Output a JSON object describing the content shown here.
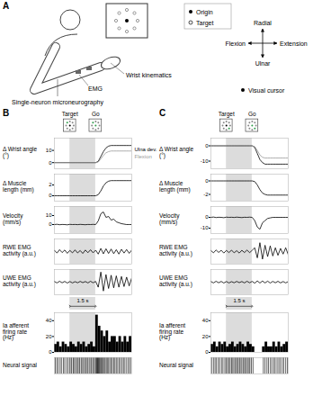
{
  "figure": {
    "diagram": {
      "panel": "A",
      "labels": {
        "emg": "EMG",
        "recording": "Single-neuron microneurography",
        "kinematics": "Wrist kinematics"
      },
      "legend": {
        "origin": "Origin",
        "target": "Target",
        "cursor": "Visual cursor"
      },
      "directions": {
        "up": "Radial",
        "down": "Ulnar",
        "left": "Flexion",
        "right": "Extension"
      }
    },
    "panels": [
      "B",
      "C"
    ],
    "events": [
      {
        "label": "Target",
        "x": 0.9
      },
      {
        "label": "Go",
        "x": 2.4
      }
    ],
    "scale_bar": {
      "value": 1.5,
      "label": "1.5 s"
    }
  },
  "chart_data": [
    {
      "panel": "B",
      "type": "line",
      "y_label": "Δ Wrist angle (°)",
      "x": [
        0,
        0.15,
        0.3,
        0.45,
        0.6,
        0.75,
        0.9,
        1.05,
        1.2,
        1.35,
        1.5,
        1.65,
        1.8,
        1.95,
        2.1,
        2.25,
        2.4,
        2.55,
        2.7,
        2.85,
        3,
        3.15,
        3.3,
        3.45,
        3.6,
        3.75,
        3.9,
        4.05,
        4.2,
        4.35,
        4.5
      ],
      "series": [
        {
          "name": "Ulna dev.",
          "color": "#000000",
          "values": [
            0,
            0,
            0,
            0,
            0,
            0,
            0,
            0,
            0,
            0,
            0,
            0,
            0,
            0,
            0,
            0,
            0,
            1,
            5,
            9,
            12,
            13.5,
            14,
            14,
            14,
            14,
            14,
            14,
            14,
            14,
            14
          ]
        },
        {
          "name": "Flexion",
          "color": "#999999",
          "values": [
            0,
            0,
            0,
            0,
            0,
            0,
            0,
            0,
            0,
            0,
            0,
            0,
            0,
            0,
            0,
            0,
            0,
            0.5,
            3,
            6,
            8,
            9,
            9.5,
            9.5,
            9.5,
            9.5,
            9.5,
            9.5,
            9.5,
            9.5,
            9.5
          ]
        }
      ],
      "xlim": [
        0,
        4.5
      ],
      "ylim": [
        -5,
        20
      ],
      "yticks": [
        0,
        10
      ],
      "tick_labels": "y",
      "legend": "right"
    },
    {
      "panel": "B",
      "type": "line",
      "y_label": "Δ Muscle length (mm)",
      "x": [
        0,
        0.15,
        0.3,
        0.45,
        0.6,
        0.75,
        0.9,
        1.05,
        1.2,
        1.35,
        1.5,
        1.65,
        1.8,
        1.95,
        2.1,
        2.25,
        2.4,
        2.55,
        2.7,
        2.85,
        3,
        3.15,
        3.3,
        3.45,
        3.6,
        3.75,
        3.9,
        4.05,
        4.2,
        4.35,
        4.5
      ],
      "values": [
        0,
        0,
        0,
        0,
        0,
        0,
        0,
        0,
        0,
        0,
        0,
        0,
        0,
        0,
        0,
        0,
        0,
        0.2,
        0.9,
        1.8,
        2.4,
        2.7,
        2.8,
        2.8,
        2.8,
        2.8,
        2.8,
        2.8,
        2.8,
        2.8,
        2.8
      ],
      "color": "#000000",
      "xlim": [
        0,
        4.5
      ],
      "ylim": [
        -1,
        4
      ],
      "yticks": [
        0,
        2
      ],
      "tick_labels": "y"
    },
    {
      "panel": "B",
      "type": "line",
      "y_label": "Velocity (mm/s)",
      "x": [
        0,
        0.15,
        0.3,
        0.45,
        0.6,
        0.75,
        0.9,
        1.05,
        1.2,
        1.35,
        1.5,
        1.65,
        1.8,
        1.95,
        2.1,
        2.25,
        2.4,
        2.55,
        2.7,
        2.85,
        3,
        3.15,
        3.3,
        3.45,
        3.6,
        3.75,
        3.9,
        4.05,
        4.2,
        4.35,
        4.5
      ],
      "values": [
        0,
        0.3,
        -0.2,
        0.1,
        0,
        -0.3,
        0.2,
        0,
        0.1,
        -0.1,
        0.2,
        0,
        -0.2,
        0.1,
        0,
        0.2,
        0,
        4,
        12,
        14,
        8,
        9,
        5,
        6,
        3,
        2,
        1,
        0.5,
        0,
        0,
        0
      ],
      "color": "#000000",
      "xlim": [
        0,
        4.5
      ],
      "ylim": [
        -10,
        20
      ],
      "yticks": [
        0,
        10
      ],
      "tick_labels": "y"
    },
    {
      "panel": "B",
      "type": "line",
      "y_label": "RWE EMG activity (a.u.)",
      "x": [
        0,
        0.15,
        0.3,
        0.45,
        0.6,
        0.75,
        0.9,
        1.05,
        1.2,
        1.35,
        1.5,
        1.65,
        1.8,
        1.95,
        2.1,
        2.25,
        2.4,
        2.55,
        2.7,
        2.85,
        3,
        3.15,
        3.3,
        3.45,
        3.6,
        3.75,
        3.9,
        4.05,
        4.2,
        4.35,
        4.5
      ],
      "values": [
        0.1,
        -0.12,
        0.15,
        -0.08,
        0.12,
        -0.14,
        0.09,
        -0.1,
        0.13,
        -0.11,
        0.08,
        -0.15,
        0.12,
        -0.09,
        0.14,
        -0.1,
        0.11,
        -0.2,
        0.25,
        -0.18,
        0.22,
        -0.15,
        0.2,
        -0.17,
        0.15,
        -0.2,
        0.18,
        -0.12,
        0.16,
        -0.14,
        0.12
      ],
      "color": "#000000",
      "xlim": [
        0,
        4.5
      ],
      "ylim": [
        -1,
        1
      ],
      "tick_labels": false
    },
    {
      "panel": "B",
      "type": "line",
      "y_label": "UWE EMG activity (a.u.)",
      "x": [
        0,
        0.15,
        0.3,
        0.45,
        0.6,
        0.75,
        0.9,
        1.05,
        1.2,
        1.35,
        1.5,
        1.65,
        1.8,
        1.95,
        2.1,
        2.25,
        2.4,
        2.55,
        2.7,
        2.85,
        3,
        3.15,
        3.3,
        3.45,
        3.6,
        3.75,
        3.9,
        4.05,
        4.2,
        4.35,
        4.5
      ],
      "values": [
        0.05,
        -0.06,
        0.07,
        -0.05,
        0.06,
        -0.07,
        0.05,
        -0.06,
        0.04,
        -0.05,
        0.06,
        -0.04,
        0.05,
        -0.06,
        0.07,
        -0.05,
        0.06,
        -0.4,
        0.8,
        -0.7,
        0.6,
        -0.5,
        0.55,
        -0.45,
        0.5,
        -0.4,
        0.45,
        -0.35,
        0.4,
        -0.3,
        0.35
      ],
      "color": "#000000",
      "xlim": [
        0,
        4.5
      ],
      "ylim": [
        -1,
        1
      ],
      "tick_labels": false
    },
    {
      "panel": "B",
      "type": "histogram",
      "y_label": "Ia afferent firing rate (Hz)",
      "bins": [
        0,
        0.15,
        0.3,
        0.45,
        0.6,
        0.75,
        0.9,
        1.05,
        1.2,
        1.35,
        1.5,
        1.65,
        1.8,
        1.95,
        2.1,
        2.25,
        2.4,
        2.55,
        2.7,
        2.85,
        3,
        3.15,
        3.3,
        3.45,
        3.6,
        3.75,
        3.9,
        4.05,
        4.2,
        4.35,
        4.5
      ],
      "values": [
        10,
        13,
        7,
        13,
        10,
        7,
        13,
        10,
        7,
        13,
        10,
        13,
        7,
        10,
        13,
        7,
        47,
        33,
        27,
        20,
        27,
        13,
        20,
        20,
        13,
        20,
        13,
        20,
        13,
        20
      ],
      "color": "#000000",
      "xlim": [
        0,
        4.5
      ],
      "ylim": [
        0,
        50
      ],
      "yticks": [
        0,
        20,
        40
      ],
      "tick_labels": "y"
    },
    {
      "panel": "B",
      "type": "raster",
      "y_label": "Neural signal",
      "x": [
        0.05,
        0.14,
        0.22,
        0.33,
        0.41,
        0.52,
        0.6,
        0.71,
        0.8,
        0.9,
        0.99,
        1.1,
        1.18,
        1.29,
        1.38,
        1.47,
        1.58,
        1.66,
        1.77,
        1.86,
        1.95,
        2.06,
        2.15,
        2.25,
        2.34,
        2.42,
        2.45,
        2.48,
        2.51,
        2.54,
        2.57,
        2.61,
        2.65,
        2.7,
        2.74,
        2.79,
        2.84,
        2.9,
        2.95,
        3.02,
        3.08,
        3.15,
        3.22,
        3.3,
        3.37,
        3.45,
        3.52,
        3.6,
        3.68,
        3.77,
        3.85,
        3.94,
        4.02,
        4.1,
        4.2,
        4.3,
        4.38,
        4.47
      ],
      "color": "#000000",
      "xlim": [
        0,
        4.5
      ],
      "tick_labels": false
    },
    {
      "panel": "C",
      "type": "line",
      "y_label": "Δ Wrist angle (°)",
      "x": [
        0,
        0.15,
        0.3,
        0.45,
        0.6,
        0.75,
        0.9,
        1.05,
        1.2,
        1.35,
        1.5,
        1.65,
        1.8,
        1.95,
        2.1,
        2.25,
        2.4,
        2.55,
        2.7,
        2.85,
        3,
        3.15,
        3.3,
        3.45,
        3.6,
        3.75,
        3.9,
        4.05,
        4.2,
        4.35,
        4.5
      ],
      "series": [
        {
          "color": "#000000",
          "values": [
            0,
            0,
            0,
            0,
            0,
            0,
            0,
            0,
            0,
            0,
            0,
            0,
            0,
            0,
            0,
            0,
            0,
            -1,
            -5,
            -9,
            -11,
            -12,
            -12,
            -12,
            -12,
            -12,
            -12,
            -12,
            -12,
            -12,
            -12
          ]
        },
        {
          "color": "#999999",
          "values": [
            0,
            0,
            0,
            0,
            0,
            0,
            0,
            0,
            0,
            0,
            0,
            0,
            0,
            0,
            0,
            0,
            0,
            -0.5,
            -3,
            -6,
            -7.5,
            -8,
            -8,
            -8,
            -8,
            -8,
            -8,
            -8,
            -8,
            -8,
            -8
          ]
        }
      ],
      "xlim": [
        0,
        4.5
      ],
      "ylim": [
        -15,
        5
      ],
      "yticks": [
        -10,
        0
      ],
      "tick_labels": "y"
    },
    {
      "panel": "C",
      "type": "line",
      "y_label": "Δ Muscle length (mm)",
      "x": [
        0,
        0.15,
        0.3,
        0.45,
        0.6,
        0.75,
        0.9,
        1.05,
        1.2,
        1.35,
        1.5,
        1.65,
        1.8,
        1.95,
        2.1,
        2.25,
        2.4,
        2.55,
        2.7,
        2.85,
        3,
        3.15,
        3.3,
        3.45,
        3.6,
        3.75,
        3.9,
        4.05,
        4.2,
        4.35,
        4.5
      ],
      "values": [
        0,
        0,
        0,
        0,
        0,
        0,
        0,
        0,
        0,
        0,
        0,
        0,
        0,
        0,
        0,
        0,
        0,
        -0.1,
        -0.6,
        -1.3,
        -1.8,
        -2,
        -2.1,
        -2.1,
        -2.1,
        -2.1,
        -2.1,
        -2.1,
        -2.1,
        -2.1,
        -2.1
      ],
      "color": "#000000",
      "xlim": [
        0,
        4.5
      ],
      "ylim": [
        -3,
        1
      ],
      "yticks": [
        -2,
        0
      ],
      "tick_labels": "y"
    },
    {
      "panel": "C",
      "type": "line",
      "y_label": "Velocity (mm/s)",
      "x": [
        0,
        0.15,
        0.3,
        0.45,
        0.6,
        0.75,
        0.9,
        1.05,
        1.2,
        1.35,
        1.5,
        1.65,
        1.8,
        1.95,
        2.1,
        2.25,
        2.4,
        2.55,
        2.7,
        2.85,
        3,
        3.15,
        3.3,
        3.45,
        3.6,
        3.75,
        3.9,
        4.05,
        4.2,
        4.35,
        4.5
      ],
      "values": [
        0,
        0.3,
        -0.2,
        0.1,
        0,
        -0.3,
        0.2,
        0,
        0.1,
        -0.1,
        0.2,
        0,
        -0.2,
        0.1,
        0,
        0.2,
        0,
        -3,
        -9,
        -11,
        -5,
        -3,
        -1,
        -0.5,
        0,
        0,
        0,
        0,
        0,
        0,
        0
      ],
      "color": "#000000",
      "xlim": [
        0,
        4.5
      ],
      "ylim": [
        -15,
        10
      ],
      "yticks": [
        -10,
        0
      ],
      "tick_labels": "y"
    },
    {
      "panel": "C",
      "type": "line",
      "y_label": "RWE EMG activity (a.u.)",
      "x": [
        0,
        0.15,
        0.3,
        0.45,
        0.6,
        0.75,
        0.9,
        1.05,
        1.2,
        1.35,
        1.5,
        1.65,
        1.8,
        1.95,
        2.1,
        2.25,
        2.4,
        2.55,
        2.7,
        2.85,
        3,
        3.15,
        3.3,
        3.45,
        3.6,
        3.75,
        3.9,
        4.05,
        4.2,
        4.35,
        4.5
      ],
      "values": [
        0.08,
        -0.1,
        0.12,
        -0.07,
        0.1,
        -0.12,
        0.09,
        -0.08,
        0.11,
        -0.1,
        0.07,
        -0.12,
        0.1,
        -0.08,
        0.12,
        -0.09,
        0.1,
        0.3,
        -0.5,
        0.7,
        -0.6,
        0.5,
        -0.4,
        0.45,
        -0.35,
        0.3,
        -0.3,
        0.25,
        -0.2,
        0.3,
        -0.25
      ],
      "color": "#000000",
      "xlim": [
        0,
        4.5
      ],
      "ylim": [
        -1,
        1
      ],
      "tick_labels": false
    },
    {
      "panel": "C",
      "type": "line",
      "y_label": "UWE EMG activity (a.u.)",
      "x": [
        0,
        0.15,
        0.3,
        0.45,
        0.6,
        0.75,
        0.9,
        1.05,
        1.2,
        1.35,
        1.5,
        1.65,
        1.8,
        1.95,
        2.1,
        2.25,
        2.4,
        2.55,
        2.7,
        2.85,
        3,
        3.15,
        3.3,
        3.45,
        3.6,
        3.75,
        3.9,
        4.05,
        4.2,
        4.35,
        4.5
      ],
      "values": [
        0.05,
        -0.06,
        0.07,
        -0.05,
        0.06,
        -0.07,
        0.05,
        -0.06,
        0.04,
        -0.05,
        0.06,
        -0.04,
        0.05,
        -0.06,
        0.07,
        -0.05,
        0.06,
        -0.08,
        0.1,
        -0.07,
        0.09,
        -0.06,
        0.08,
        -0.07,
        0.06,
        -0.05,
        0.07,
        -0.06,
        0.05,
        -0.06,
        0.05
      ],
      "color": "#000000",
      "xlim": [
        0,
        4.5
      ],
      "ylim": [
        -1,
        1
      ],
      "tick_labels": false
    },
    {
      "panel": "C",
      "type": "histogram",
      "y_label": "Ia afferent firing rate (Hz)",
      "bins": [
        0,
        0.15,
        0.3,
        0.45,
        0.6,
        0.75,
        0.9,
        1.05,
        1.2,
        1.35,
        1.5,
        1.65,
        1.8,
        1.95,
        2.1,
        2.25,
        2.4,
        2.55,
        2.7,
        2.85,
        3,
        3.15,
        3.3,
        3.45,
        3.6,
        3.75,
        3.9,
        4.05,
        4.2,
        4.35,
        4.5
      ],
      "values": [
        10,
        13,
        7,
        13,
        10,
        13,
        7,
        10,
        13,
        7,
        10,
        13,
        10,
        7,
        13,
        10,
        7,
        0,
        0,
        0,
        7,
        13,
        7,
        7,
        13,
        7,
        13,
        7,
        10,
        13
      ],
      "color": "#000000",
      "xlim": [
        0,
        4.5
      ],
      "ylim": [
        0,
        50
      ],
      "yticks": [
        0,
        20,
        40
      ],
      "tick_labels": "y"
    },
    {
      "panel": "C",
      "type": "raster",
      "y_label": "Neural signal",
      "x": [
        0.04,
        0.15,
        0.24,
        0.32,
        0.43,
        0.51,
        0.62,
        0.7,
        0.81,
        0.89,
        1.0,
        1.09,
        1.2,
        1.28,
        1.39,
        1.48,
        1.57,
        1.67,
        1.76,
        1.87,
        1.96,
        2.05,
        2.16,
        2.24,
        2.35,
        2.45,
        3.05,
        3.15,
        3.26,
        3.35,
        3.46,
        3.55,
        3.66,
        3.74,
        3.85,
        3.95,
        4.04,
        4.15,
        4.24,
        4.35,
        4.45
      ],
      "color": "#000000",
      "xlim": [
        0,
        4.5
      ],
      "tick_labels": false
    }
  ]
}
